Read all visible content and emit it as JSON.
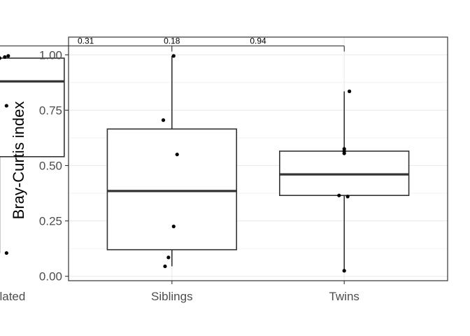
{
  "chart_data": {
    "type": "boxplot",
    "title": "",
    "xlabel": "",
    "ylabel": "Bray-Curtis index",
    "ylim": [
      -0.02,
      1.08
    ],
    "yticks": [
      0.0,
      0.25,
      0.5,
      0.75,
      1.0
    ],
    "ytick_labels": [
      "0.00",
      "0.25",
      "0.50",
      "0.75",
      "1.00"
    ],
    "grid": true,
    "legend": "none",
    "categories": [
      "Unrelated",
      "Siblings",
      "Twins"
    ],
    "boxes": [
      {
        "name": "Unrelated",
        "whisker_low": 0.105,
        "q1": 0.54,
        "median": 0.88,
        "q3": 0.985,
        "whisker_high": 0.995
      },
      {
        "name": "Siblings",
        "whisker_low": 0.045,
        "q1": 0.12,
        "median": 0.385,
        "q3": 0.665,
        "whisker_high": 0.995
      },
      {
        "name": "Twins",
        "whisker_low": 0.025,
        "q1": 0.365,
        "median": 0.46,
        "q3": 0.565,
        "whisker_high": 0.835
      }
    ],
    "points": [
      {
        "group": 0,
        "jitter": 0.05,
        "y": 0.995
      },
      {
        "group": 0,
        "jitter": 0.0,
        "y": 0.985
      },
      {
        "group": 0,
        "jitter": 0.03,
        "y": 0.99
      },
      {
        "group": 0,
        "jitter": 0.04,
        "y": 0.77
      },
      {
        "group": 0,
        "jitter": -0.02,
        "y": 0.465
      },
      {
        "group": 0,
        "jitter": 0.04,
        "y": 0.105
      },
      {
        "group": 1,
        "jitter": 0.01,
        "y": 0.995
      },
      {
        "group": 1,
        "jitter": -0.05,
        "y": 0.705
      },
      {
        "group": 1,
        "jitter": 0.03,
        "y": 0.55
      },
      {
        "group": 1,
        "jitter": 0.01,
        "y": 0.225
      },
      {
        "group": 1,
        "jitter": -0.02,
        "y": 0.085
      },
      {
        "group": 1,
        "jitter": -0.04,
        "y": 0.045
      },
      {
        "group": 2,
        "jitter": 0.03,
        "y": 0.835
      },
      {
        "group": 2,
        "jitter": 0.0,
        "y": 0.575
      },
      {
        "group": 2,
        "jitter": 0.0,
        "y": 0.565
      },
      {
        "group": 2,
        "jitter": 0.0,
        "y": 0.555
      },
      {
        "group": 2,
        "jitter": -0.03,
        "y": 0.365
      },
      {
        "group": 2,
        "jitter": 0.02,
        "y": 0.36
      },
      {
        "group": 2,
        "jitter": 0.0,
        "y": 0.025
      }
    ],
    "comparisons": [
      {
        "from": "Unrelated",
        "to": "Twins",
        "bracket_y": 1.04,
        "label_x": 0.5,
        "label": "0.31"
      },
      {
        "from": "Unrelated",
        "to": "Twins",
        "bracket_y": 1.04,
        "label_x": 1.0,
        "label": "0.18"
      },
      {
        "from": "Unrelated",
        "to": "Twins",
        "bracket_y": 1.04,
        "label_x": 1.5,
        "label": "0.94"
      }
    ],
    "colors": {
      "box_stroke": "#333333",
      "point": "#000000",
      "grid": "#ebebeb",
      "panel_border": "#333333",
      "tick_label": "#4d4d4d"
    }
  }
}
